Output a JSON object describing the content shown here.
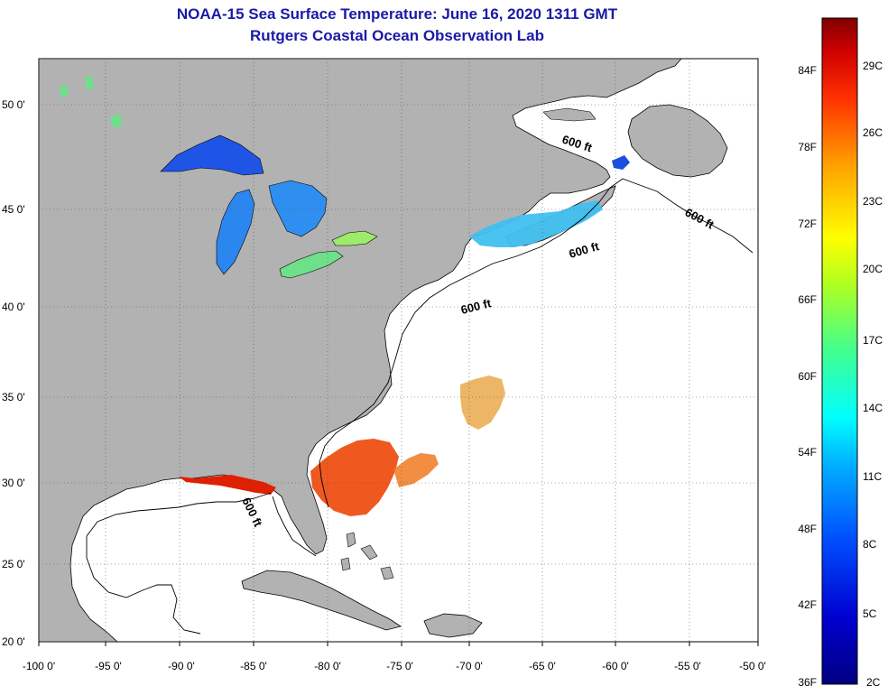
{
  "title": {
    "line1": "NOAA-15 Sea Surface Temperature:  June 16, 2020 1311 GMT",
    "line2": "Rutgers Coastal Ocean Observation Lab"
  },
  "axes": {
    "x_ticks": [
      "-100 0'",
      "-95 0'",
      "-90 0'",
      "-85 0'",
      "-80 0'",
      "-75 0'",
      "-70 0'",
      "-65 0'",
      "-60 0'",
      "-55 0'",
      "-50 0'"
    ],
    "y_ticks": [
      "50 0'",
      "45 0'",
      "40 0'",
      "35 0'",
      "30 0'",
      "25 0'",
      "20 0'"
    ]
  },
  "contour_labels": [
    "600 ft",
    "600 ft",
    "600 ft",
    "600 ft",
    "600 ft"
  ],
  "colorbar": {
    "fahrenheit": [
      "84F",
      "78F",
      "72F",
      "66F",
      "60F",
      "54F",
      "48F",
      "42F",
      "36F"
    ],
    "celsius": [
      "29C",
      "26C",
      "23C",
      "20C",
      "17C",
      "14C",
      "11C",
      "8C",
      "5C",
      "2C"
    ]
  },
  "colors": {
    "land": "#b2b2b2",
    "ocean": "#ffffff",
    "title": "#1a1aa6"
  }
}
